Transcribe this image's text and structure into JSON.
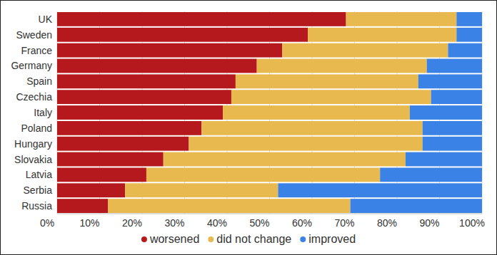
{
  "chart_data": {
    "type": "bar",
    "orientation": "horizontal",
    "stacked": true,
    "grid": true,
    "legend": "bottom",
    "categories": [
      "UK",
      "Sweden",
      "France",
      "Germany",
      "Spain",
      "Czechia",
      "Italy",
      "Poland",
      "Hungary",
      "Slovakia",
      "Latvia",
      "Serbia",
      "Russia"
    ],
    "series": [
      {
        "name": "worsened",
        "color": "#b5191d",
        "values": [
          68,
          59,
          53,
          47,
          42,
          41,
          39,
          34,
          31,
          25,
          21,
          16,
          12
        ]
      },
      {
        "name": "did not change",
        "color": "#e8b94f",
        "values": [
          26,
          35,
          39,
          40,
          43,
          47,
          44,
          52,
          55,
          57,
          55,
          36,
          57
        ]
      },
      {
        "name": "improved",
        "color": "#3b82e6",
        "values": [
          6,
          6,
          8,
          13,
          15,
          12,
          17,
          14,
          14,
          18,
          24,
          48,
          31
        ]
      }
    ],
    "xlim": [
      0,
      100
    ],
    "xticks": [
      {
        "value": 0,
        "label": "0%"
      },
      {
        "value": 10,
        "label": "10%"
      },
      {
        "value": 20,
        "label": "20%"
      },
      {
        "value": 30,
        "label": "30%"
      },
      {
        "value": 40,
        "label": "40%"
      },
      {
        "value": 50,
        "label": "50%"
      },
      {
        "value": 60,
        "label": "60%"
      },
      {
        "value": 70,
        "label": "70%"
      },
      {
        "value": 80,
        "label": "80%"
      },
      {
        "value": 90,
        "label": "90%"
      },
      {
        "value": 100,
        "label": "100%"
      }
    ]
  }
}
